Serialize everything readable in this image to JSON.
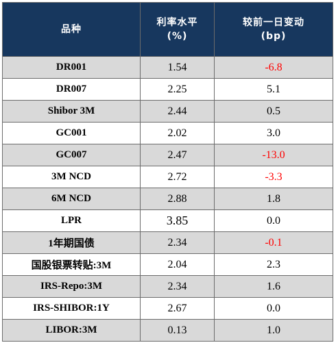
{
  "table": {
    "headers": {
      "name": "品种",
      "rate_line1": "利率水平",
      "rate_line2": "(%)",
      "change_line1": "较前一日变动",
      "change_line2": "(bp)"
    },
    "rows": [
      {
        "name": "DR001",
        "rate": "1.54",
        "change": "-6.8",
        "shaded": true,
        "negative": true
      },
      {
        "name": "DR007",
        "rate": "2.25",
        "change": "5.1",
        "shaded": false,
        "negative": false
      },
      {
        "name": "Shibor 3M",
        "rate": "2.44",
        "change": "0.5",
        "shaded": true,
        "negative": false
      },
      {
        "name": "GC001",
        "rate": "2.02",
        "change": "3.0",
        "shaded": false,
        "negative": false
      },
      {
        "name": "GC007",
        "rate": "2.47",
        "change": "-13.0",
        "shaded": true,
        "negative": true
      },
      {
        "name": "3M NCD",
        "rate": "2.72",
        "change": "-3.3",
        "shaded": false,
        "negative": true
      },
      {
        "name": "6M NCD",
        "rate": "2.88",
        "change": "1.8",
        "shaded": true,
        "negative": false
      },
      {
        "name": "LPR",
        "rate": "3.85",
        "change": "0.0",
        "shaded": false,
        "negative": false
      },
      {
        "name": "1年期国债",
        "rate": "2.34",
        "change": "-0.1",
        "shaded": true,
        "negative": true
      },
      {
        "name": "国股银票转贴:3M",
        "rate": "2.04",
        "change": "2.3",
        "shaded": false,
        "negative": false
      },
      {
        "name": "IRS-Repo:3M",
        "rate": "2.34",
        "change": "1.6",
        "shaded": true,
        "negative": false
      },
      {
        "name": "IRS-SHIBOR:1Y",
        "rate": "2.67",
        "change": "0.0",
        "shaded": false,
        "negative": false
      },
      {
        "name": "LIBOR:3M",
        "rate": "0.13",
        "change": "1.0",
        "shaded": true,
        "negative": false
      }
    ],
    "colors": {
      "header_bg": "#17375e",
      "header_text": "#ffffff",
      "shaded_row": "#d9d9d9",
      "negative_text": "#ff0000",
      "border": "#6b6b6b"
    }
  }
}
